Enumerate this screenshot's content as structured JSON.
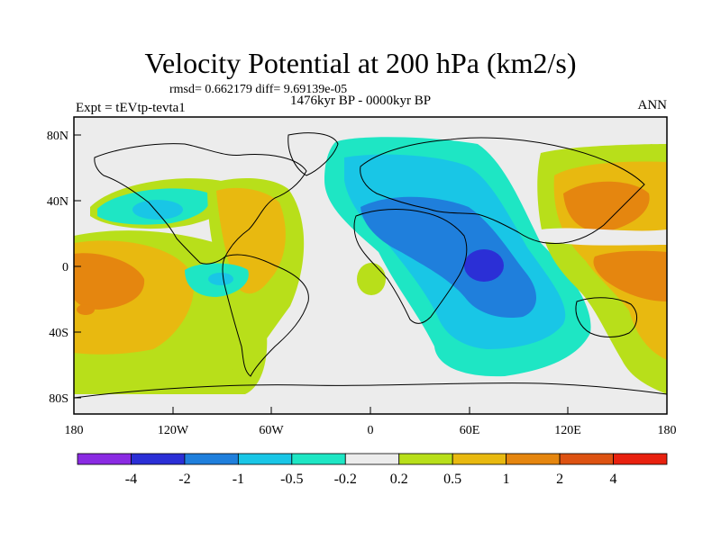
{
  "title": "Velocity Potential at 200 hPa (km2/s)",
  "stats_line": "rmsd= 0.662179 diff= 9.69139e-05",
  "period_line": "1476kyr BP - 0000kyr BP",
  "experiment_label": "Expt = tEVtp-tevta1",
  "season_label": "ANN",
  "lat_ticks": [
    "80N",
    "40N",
    "0",
    "40S",
    "80S"
  ],
  "lon_ticks": [
    "180",
    "120W",
    "60W",
    "0",
    "60E",
    "120E",
    "180"
  ],
  "colorbar": {
    "colors": [
      "#8a2be2",
      "#2b2fd6",
      "#1f7fdc",
      "#19c6e6",
      "#1ee6c4",
      "#ececec",
      "#b8df1a",
      "#e8b910",
      "#e5860f",
      "#dd5212",
      "#e8210f"
    ],
    "labels": [
      "-4",
      "-2",
      "-1",
      "-0.5",
      "-0.2",
      "0.2",
      "0.5",
      "1",
      "2",
      "4"
    ]
  }
}
